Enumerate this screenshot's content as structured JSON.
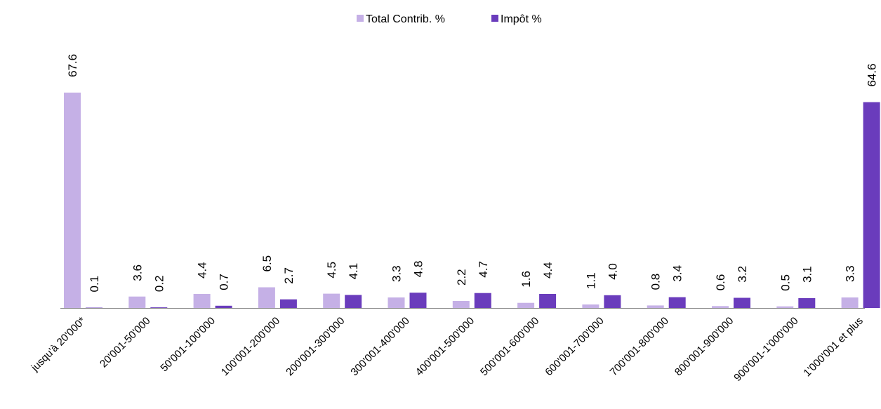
{
  "chart_data": {
    "type": "bar",
    "title": "",
    "xlabel": "",
    "ylabel": "",
    "ylim": [
      0,
      80
    ],
    "grid": false,
    "legend_position": "top-center",
    "categories": [
      "jusqu'à 20'000*",
      "20'001-50'000",
      "50'001-100'000",
      "100'001-200'000",
      "200'001-300'000",
      "300'001-400'000",
      "400'001-500'000",
      "500'001-600'000",
      "600'001-700'000",
      "700'001-800'000",
      "800'001-900'000",
      "900'001-1'000'000",
      "1'000'001 et plus"
    ],
    "series": [
      {
        "name": "Total Contrib. %",
        "color": "#c5b0e6",
        "values": [
          67.6,
          3.6,
          4.4,
          6.5,
          4.5,
          3.3,
          2.2,
          1.6,
          1.1,
          0.8,
          0.6,
          0.5,
          3.3
        ]
      },
      {
        "name": "Impôt %",
        "color": "#6a3cbc",
        "values": [
          0.1,
          0.2,
          0.7,
          2.7,
          4.1,
          4.8,
          4.7,
          4.4,
          4.0,
          3.4,
          3.2,
          3.1,
          64.6
        ]
      }
    ]
  }
}
